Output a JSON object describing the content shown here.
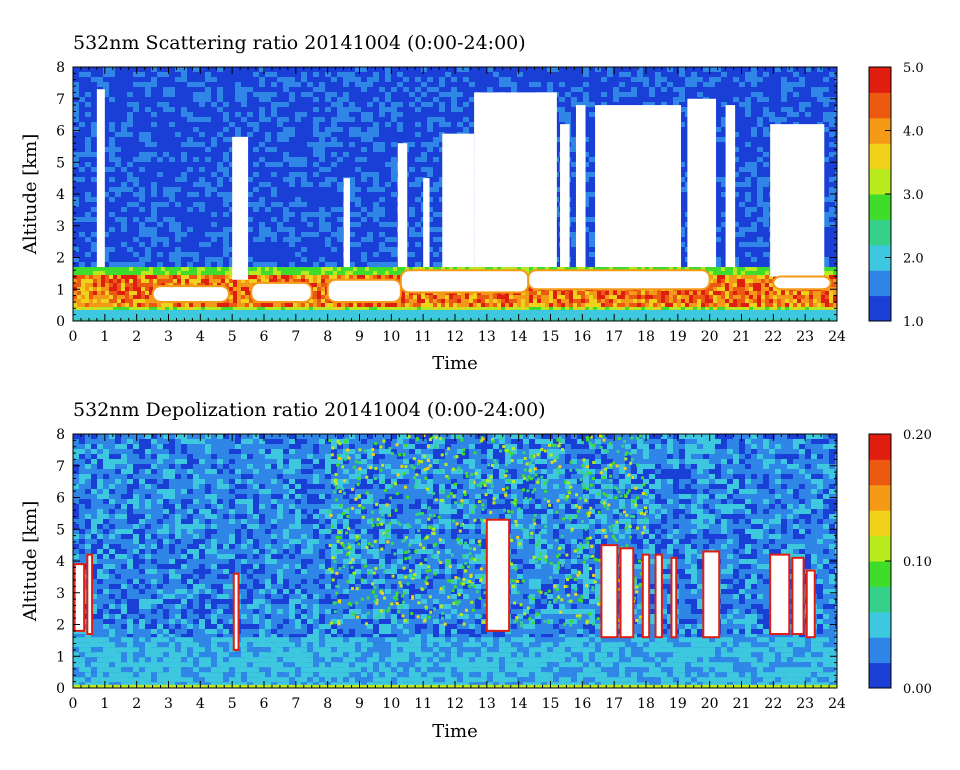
{
  "chart_data": [
    {
      "type": "heatmap",
      "title": "532nm Scattering ratio  20141004 (0:00-24:00)",
      "xlabel": "Time",
      "ylabel": "Altitude [km]",
      "xlim": [
        0,
        24
      ],
      "ylim": [
        0,
        8
      ],
      "x_ticks": [
        "0",
        "1",
        "2",
        "3",
        "4",
        "5",
        "6",
        "7",
        "8",
        "9",
        "10",
        "11",
        "12",
        "13",
        "14",
        "15",
        "16",
        "17",
        "18",
        "19",
        "20",
        "21",
        "22",
        "23",
        "24"
      ],
      "y_ticks": [
        "0",
        "1",
        "2",
        "3",
        "4",
        "5",
        "6",
        "7",
        "8"
      ],
      "colorbar": {
        "min": 1.0,
        "max": 5.0,
        "ticks": [
          "1.0",
          "2.0",
          "3.0",
          "4.0",
          "5.0"
        ]
      },
      "colormap": [
        "#1a3fd6",
        "#2f86e6",
        "#3ec8e0",
        "#35d08a",
        "#3fdc2a",
        "#b8ea1e",
        "#f0d21a",
        "#f59a16",
        "#ec5a12",
        "#e01e10"
      ],
      "layers": {
        "surface_layer_top_km": 0.3,
        "boundary_layer_top_km": 1.7,
        "boundary_layer_value_range": [
          3.5,
          5.0
        ],
        "background_value_range": [
          1.0,
          1.6
        ]
      },
      "no_data_columns": [
        {
          "x0": 0.75,
          "x1": 1.0,
          "ybottom": 1.7,
          "ytop": 7.3
        },
        {
          "x0": 5.0,
          "x1": 5.5,
          "ybottom": 1.3,
          "ytop": 5.8
        },
        {
          "x0": 8.5,
          "x1": 8.7,
          "ybottom": 1.7,
          "ytop": 4.5
        },
        {
          "x0": 10.2,
          "x1": 10.5,
          "ybottom": 1.7,
          "ytop": 5.6
        },
        {
          "x0": 11.0,
          "x1": 11.2,
          "ybottom": 1.7,
          "ytop": 4.5
        },
        {
          "x0": 11.6,
          "x1": 12.6,
          "ybottom": 1.7,
          "ytop": 5.9
        },
        {
          "x0": 12.6,
          "x1": 15.2,
          "ybottom": 1.7,
          "ytop": 7.2
        },
        {
          "x0": 15.3,
          "x1": 15.6,
          "ybottom": 1.7,
          "ytop": 6.2
        },
        {
          "x0": 15.8,
          "x1": 16.1,
          "ybottom": 1.7,
          "ytop": 6.8
        },
        {
          "x0": 16.4,
          "x1": 19.1,
          "ybottom": 1.7,
          "ytop": 6.8
        },
        {
          "x0": 19.3,
          "x1": 20.2,
          "ybottom": 1.7,
          "ytop": 7.0
        },
        {
          "x0": 20.5,
          "x1": 20.8,
          "ybottom": 1.7,
          "ytop": 6.8
        },
        {
          "x0": 21.9,
          "x1": 23.6,
          "ybottom": 1.4,
          "ytop": 6.2
        }
      ],
      "no_data_in_boundary_layer": [
        {
          "x0": 2.5,
          "x1": 4.9,
          "ybottom": 0.6,
          "ytop": 1.1
        },
        {
          "x0": 5.6,
          "x1": 7.5,
          "ybottom": 0.6,
          "ytop": 1.2
        },
        {
          "x0": 8.0,
          "x1": 10.3,
          "ybottom": 0.6,
          "ytop": 1.3
        },
        {
          "x0": 10.3,
          "x1": 14.3,
          "ybottom": 0.9,
          "ytop": 1.6
        },
        {
          "x0": 14.3,
          "x1": 20.0,
          "ybottom": 1.0,
          "ytop": 1.6
        },
        {
          "x0": 22.0,
          "x1": 23.8,
          "ybottom": 1.0,
          "ytop": 1.4
        }
      ]
    },
    {
      "type": "heatmap",
      "title": "532nm Depolization ratio  20141004 (0:00-24:00)",
      "xlabel": "Time",
      "ylabel": "Altitude [km]",
      "xlim": [
        0,
        24
      ],
      "ylim": [
        0,
        8
      ],
      "x_ticks": [
        "0",
        "1",
        "2",
        "3",
        "4",
        "5",
        "6",
        "7",
        "8",
        "9",
        "10",
        "11",
        "12",
        "13",
        "14",
        "15",
        "16",
        "17",
        "18",
        "19",
        "20",
        "21",
        "22",
        "23",
        "24"
      ],
      "y_ticks": [
        "0",
        "1",
        "2",
        "3",
        "4",
        "5",
        "6",
        "7",
        "8"
      ],
      "colorbar": {
        "min": 0.0,
        "max": 0.2,
        "ticks": [
          "0.00",
          "0.10",
          "0.20"
        ]
      },
      "colormap": [
        "#1a3fd6",
        "#2f86e6",
        "#3ec8e0",
        "#35d08a",
        "#3fdc2a",
        "#b8ea1e",
        "#f0d21a",
        "#f59a16",
        "#ec5a12",
        "#e01e10"
      ],
      "layers": {
        "background_value_range": [
          0.01,
          0.05
        ],
        "lower_layer_top_km": 1.6,
        "lower_layer_value_range": [
          0.03,
          0.06
        ]
      },
      "high_depol_columns": [
        {
          "x0": 0.05,
          "x1": 0.35,
          "ybottom": 1.8,
          "ytop": 3.9
        },
        {
          "x0": 0.45,
          "x1": 0.6,
          "ybottom": 1.7,
          "ytop": 4.2
        },
        {
          "x0": 5.05,
          "x1": 5.2,
          "ybottom": 1.2,
          "ytop": 3.6
        },
        {
          "x0": 13.0,
          "x1": 13.7,
          "ybottom": 1.8,
          "ytop": 5.3
        },
        {
          "x0": 16.6,
          "x1": 17.1,
          "ybottom": 1.6,
          "ytop": 4.5
        },
        {
          "x0": 17.2,
          "x1": 17.6,
          "ybottom": 1.6,
          "ytop": 4.4
        },
        {
          "x0": 17.9,
          "x1": 18.1,
          "ybottom": 1.6,
          "ytop": 4.2
        },
        {
          "x0": 18.3,
          "x1": 18.5,
          "ybottom": 1.6,
          "ytop": 4.2
        },
        {
          "x0": 18.8,
          "x1": 18.95,
          "ybottom": 1.6,
          "ytop": 4.1
        },
        {
          "x0": 19.8,
          "x1": 20.3,
          "ybottom": 1.6,
          "ytop": 4.3
        },
        {
          "x0": 21.9,
          "x1": 22.5,
          "ybottom": 1.7,
          "ytop": 4.2
        },
        {
          "x0": 22.6,
          "x1": 22.95,
          "ybottom": 1.7,
          "ytop": 4.1
        },
        {
          "x0": 23.05,
          "x1": 23.3,
          "ybottom": 1.6,
          "ytop": 3.7
        }
      ]
    }
  ]
}
